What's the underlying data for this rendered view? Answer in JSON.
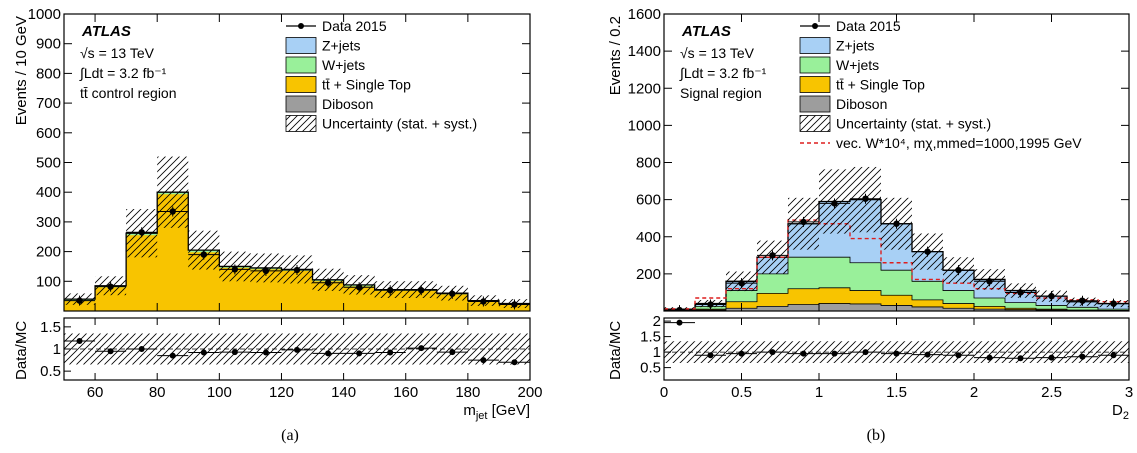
{
  "colors": {
    "zjets": "#a8d0f5",
    "wjets": "#99f09a",
    "ttbar": "#f8c400",
    "diboson": "#9d9d9d",
    "signal": "#dd1f1f",
    "data": "#000000"
  },
  "captions": [
    "(a)",
    "(b)"
  ],
  "chart_data": [
    {
      "type": "bar",
      "panel": "a",
      "atlas_label": "ATLAS",
      "text_lines": [
        "√s = 13 TeV",
        "∫Ldt = 3.2 fb⁻¹",
        "tt̄ control region"
      ],
      "ylabel": "Events / 10 GeV",
      "xlabel": "m_jet [GeV]",
      "xlabel_main": "m",
      "xlabel_sub": "jet",
      "xlabel_unit": " [GeV]",
      "xlim": [
        50,
        200
      ],
      "ylim": [
        0,
        1000
      ],
      "xticks": [
        "60",
        "80",
        "100",
        "120",
        "140",
        "160",
        "180",
        "200"
      ],
      "yticks": [
        "100",
        "200",
        "300",
        "400",
        "500",
        "600",
        "700",
        "800",
        "900",
        "1000"
      ],
      "legend": [
        "Data 2015",
        "Z+jets",
        "W+jets",
        "tt̄ + Single Top",
        "Diboson",
        "Uncertainty (stat. + syst.)"
      ],
      "bin_edges": [
        50,
        60,
        70,
        80,
        90,
        100,
        110,
        120,
        130,
        140,
        150,
        160,
        170,
        180,
        190,
        200
      ],
      "mc_total": [
        40,
        85,
        262,
        400,
        205,
        150,
        145,
        140,
        105,
        88,
        72,
        72,
        60,
        35,
        25
      ],
      "ttbar_single_top": [
        35,
        80,
        255,
        393,
        198,
        145,
        140,
        135,
        100,
        83,
        68,
        68,
        56,
        32,
        22
      ],
      "data_values": [
        35,
        82,
        265,
        335,
        190,
        140,
        135,
        138,
        95,
        80,
        70,
        70,
        58,
        32,
        22
      ],
      "ratio_panel": {
        "ylabel": "Data/MC",
        "yticks": [
          "0.5",
          "1",
          "1.5"
        ],
        "ylim": [
          0.3,
          1.7
        ],
        "values": [
          1.18,
          0.95,
          1.0,
          0.85,
          0.92,
          0.93,
          0.92,
          0.98,
          0.9,
          0.9,
          0.92,
          1.02,
          0.93,
          0.75,
          0.7
        ]
      }
    },
    {
      "type": "bar",
      "panel": "b",
      "atlas_label": "ATLAS",
      "text_lines": [
        "√s = 13 TeV",
        "∫Ldt = 3.2 fb⁻¹",
        "Signal region"
      ],
      "ylabel": "Events / 0.2",
      "xlabel": "D_2",
      "xlabel_main": "D",
      "xlabel_sub": "2",
      "xlim": [
        0,
        3
      ],
      "ylim": [
        0,
        1600
      ],
      "xticks": [
        "0",
        "0.5",
        "1",
        "1.5",
        "2",
        "2.5",
        "3"
      ],
      "yticks": [
        "200",
        "400",
        "600",
        "800",
        "1000",
        "1200",
        "1400",
        "1600"
      ],
      "legend": [
        "Data 2015",
        "Z+jets",
        "W+jets",
        "tt̄ + Single Top",
        "Diboson",
        "Uncertainty (stat. + syst.)",
        "vec. W*10⁴, mχ,mmed=1000,1995 GeV"
      ],
      "bin_edges": [
        0,
        0.2,
        0.4,
        0.6,
        0.8,
        1.0,
        1.2,
        1.4,
        1.6,
        1.8,
        2.0,
        2.2,
        2.4,
        2.6,
        2.8,
        3.0
      ],
      "series": [
        {
          "name": "Diboson",
          "values": [
            2,
            5,
            15,
            25,
            35,
            40,
            38,
            30,
            22,
            15,
            10,
            7,
            5,
            3,
            2
          ]
        },
        {
          "name": "tt̄ + Single Top",
          "values": [
            3,
            10,
            50,
            95,
            120,
            125,
            110,
            85,
            60,
            40,
            25,
            15,
            10,
            5,
            3
          ]
        },
        {
          "name": "W+jets",
          "values": [
            5,
            25,
            110,
            200,
            290,
            290,
            260,
            220,
            160,
            110,
            70,
            45,
            30,
            20,
            10
          ]
        },
        {
          "name": "Z+jets",
          "values": [
            10,
            40,
            160,
            290,
            470,
            590,
            600,
            470,
            320,
            220,
            170,
            110,
            80,
            50,
            40
          ]
        }
      ],
      "signal": [
        12,
        70,
        120,
        290,
        490,
        470,
        390,
        260,
        170,
        150,
        120,
        95,
        70,
        60,
        50
      ],
      "data_values": [
        5,
        35,
        150,
        300,
        480,
        580,
        605,
        470,
        320,
        220,
        160,
        100,
        80,
        55,
        40
      ],
      "ratio_panel": {
        "ylabel": "Data/MC",
        "yticks": [
          "0.5",
          "1",
          "1.5",
          "2"
        ],
        "ylim": [
          0.1,
          2.1
        ],
        "values": [
          1.95,
          0.9,
          0.95,
          1.0,
          0.95,
          0.95,
          1.0,
          0.95,
          0.92,
          0.9,
          0.82,
          0.8,
          0.82,
          0.85,
          0.9
        ]
      }
    }
  ]
}
